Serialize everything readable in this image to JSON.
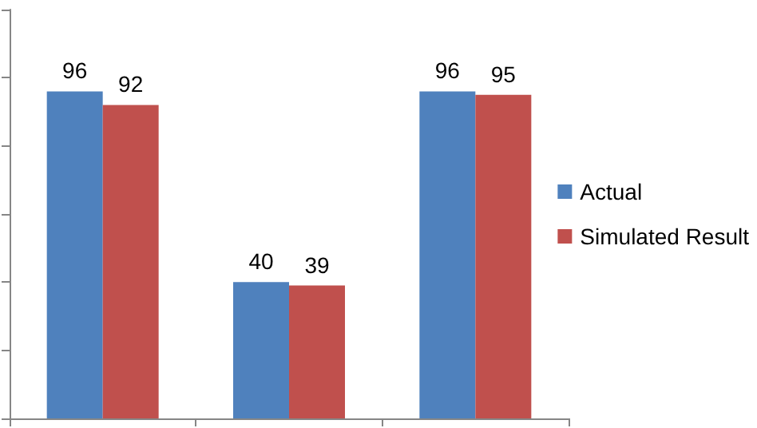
{
  "chart_data": {
    "type": "bar",
    "categories": [
      null,
      null,
      null
    ],
    "series": [
      {
        "name": "Actual",
        "color": "#4f81bd",
        "values": [
          96,
          40,
          96
        ]
      },
      {
        "name": "Simulated Result",
        "color": "#c0504d",
        "values": [
          92,
          39,
          95
        ]
      }
    ],
    "ylim": [
      0,
      120
    ],
    "yticks": [
      {
        "value": 0,
        "label": null
      },
      {
        "value": 20,
        "label": null
      },
      {
        "value": 40,
        "label": null
      },
      {
        "value": 60,
        "label": null
      },
      {
        "value": 80,
        "label": null
      },
      {
        "value": 100,
        "label": null
      },
      {
        "value": 120,
        "label": null
      }
    ],
    "tick_labels": false,
    "data_labels": true,
    "grid": false,
    "legend": "right"
  }
}
